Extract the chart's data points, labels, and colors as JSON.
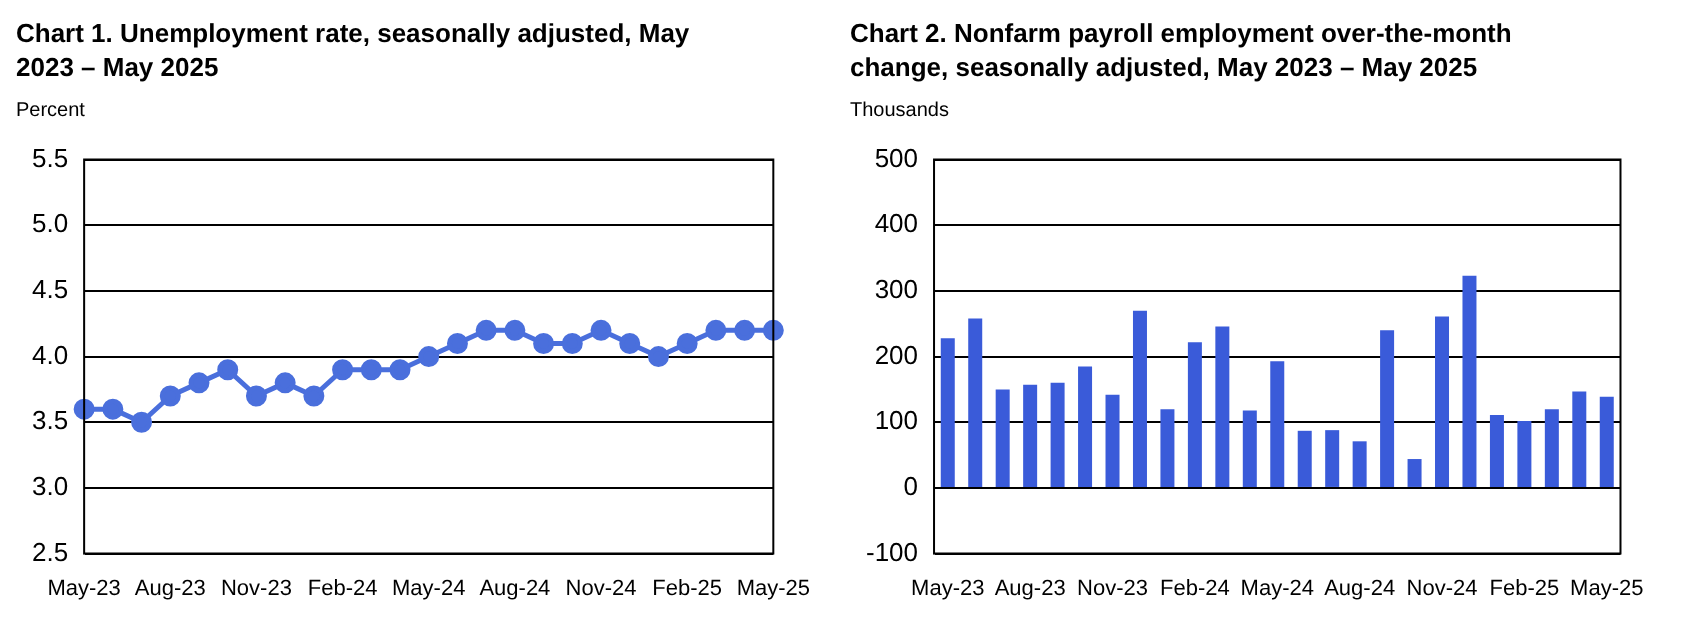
{
  "chart_data": [
    {
      "type": "line",
      "title": "Chart 1. Unemployment rate, seasonally adjusted, May 2023 – May 2025",
      "ylabel": "Percent",
      "categories": [
        "May-23",
        null,
        null,
        "Aug-23",
        null,
        null,
        "Nov-23",
        null,
        null,
        "Feb-24",
        null,
        null,
        "May-24",
        null,
        null,
        "Aug-24",
        null,
        null,
        "Nov-24",
        null,
        null,
        "Feb-25",
        null,
        null,
        "May-25"
      ],
      "values": [
        3.6,
        3.6,
        3.5,
        3.7,
        3.8,
        3.9,
        3.7,
        3.8,
        3.7,
        3.9,
        3.9,
        3.9,
        4.0,
        4.1,
        4.2,
        4.2,
        4.1,
        4.1,
        4.2,
        4.1,
        4.0,
        4.1,
        4.2,
        4.2,
        4.2
      ],
      "color": "#4a6fdc",
      "marker": "circle",
      "ylim": [
        2.5,
        5.5
      ],
      "yticks": [
        {
          "value": 2.5,
          "label": "2.5"
        },
        {
          "value": 3,
          "label": "3.0"
        },
        {
          "value": 3.5,
          "label": "3.5"
        },
        {
          "value": 4,
          "label": "4.0"
        },
        {
          "value": 4.5,
          "label": "4.5"
        },
        {
          "value": 5,
          "label": "5.0"
        },
        {
          "value": 5.5,
          "label": "5.5"
        }
      ],
      "grid": "y"
    },
    {
      "type": "bar",
      "title": "Chart 2. Nonfarm payroll employment over-the-month change, seasonally adjusted, May 2023 – May 2025",
      "ylabel": "Thousands",
      "categories": [
        "May-23",
        null,
        null,
        "Aug-23",
        null,
        null,
        "Nov-23",
        null,
        null,
        "Feb-24",
        null,
        null,
        "May-24",
        null,
        null,
        "Aug-24",
        null,
        null,
        "Nov-24",
        null,
        null,
        "Feb-25",
        null,
        null,
        "May-25"
      ],
      "values": [
        228,
        258,
        150,
        157,
        160,
        185,
        142,
        270,
        120,
        222,
        246,
        118,
        193,
        87,
        88,
        71,
        240,
        44,
        261,
        323,
        111,
        102,
        120,
        147,
        139
      ],
      "color": "#3a5bd9",
      "ylim": [
        -100,
        500
      ],
      "yticks": [
        -100,
        0,
        100,
        200,
        300,
        400,
        500
      ],
      "grid": "y"
    }
  ]
}
